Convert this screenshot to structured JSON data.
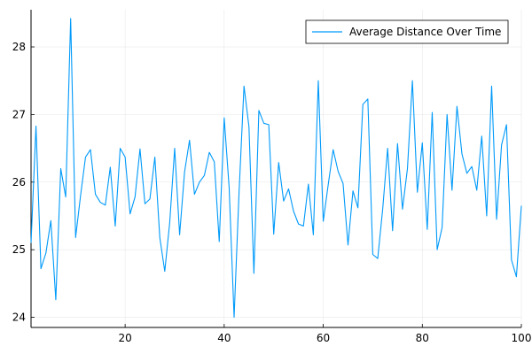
{
  "chart_data": {
    "type": "line",
    "title": "",
    "xlabel": "",
    "ylabel": "",
    "xlim": [
      1,
      100
    ],
    "ylim": [
      23.85,
      28.55
    ],
    "xticks": [
      20,
      40,
      60,
      80,
      100
    ],
    "yticks": [
      24,
      25,
      26,
      27,
      28
    ],
    "grid": true,
    "legend_position": "top-right",
    "line_color": "#009AFA",
    "series": [
      {
        "name": "Average Distance Over Time",
        "x": [
          1,
          2,
          3,
          4,
          5,
          6,
          7,
          8,
          9,
          10,
          11,
          12,
          13,
          14,
          15,
          16,
          17,
          18,
          19,
          20,
          21,
          22,
          23,
          24,
          25,
          26,
          27,
          28,
          29,
          30,
          31,
          32,
          33,
          34,
          35,
          36,
          37,
          38,
          39,
          40,
          41,
          42,
          43,
          44,
          45,
          46,
          47,
          48,
          49,
          50,
          51,
          52,
          53,
          54,
          55,
          56,
          57,
          58,
          59,
          60,
          61,
          62,
          63,
          64,
          65,
          66,
          67,
          68,
          69,
          70,
          71,
          72,
          73,
          74,
          75,
          76,
          77,
          78,
          79,
          80,
          81,
          82,
          83,
          84,
          85,
          86,
          87,
          88,
          89,
          90,
          91,
          92,
          93,
          94,
          95,
          96,
          97,
          98,
          99,
          100
        ],
        "y": [
          25.1,
          26.83,
          24.72,
          24.95,
          25.43,
          24.26,
          26.2,
          25.78,
          28.42,
          25.18,
          25.8,
          26.37,
          26.48,
          25.82,
          25.7,
          25.66,
          26.22,
          25.35,
          26.5,
          26.37,
          25.53,
          25.78,
          26.49,
          25.68,
          25.75,
          26.37,
          25.18,
          24.68,
          25.4,
          26.5,
          25.22,
          26.15,
          26.62,
          25.82,
          26.0,
          26.1,
          26.44,
          26.3,
          25.12,
          26.95,
          25.92,
          24.0,
          25.85,
          27.42,
          26.82,
          24.65,
          27.06,
          26.87,
          26.85,
          25.23,
          26.29,
          25.72,
          25.9,
          25.57,
          25.38,
          25.35,
          25.97,
          25.22,
          27.5,
          25.42,
          25.96,
          26.48,
          26.16,
          25.98,
          25.07,
          25.87,
          25.62,
          27.15,
          27.23,
          24.93,
          24.87,
          25.6,
          26.5,
          25.28,
          26.57,
          25.6,
          26.2,
          27.5,
          25.85,
          26.58,
          25.3,
          27.03,
          25.0,
          25.33,
          27.0,
          25.88,
          27.12,
          26.42,
          26.13,
          26.23,
          25.88,
          26.68,
          25.5,
          27.42,
          25.45,
          26.55,
          26.85,
          24.85,
          24.6,
          25.65
        ]
      }
    ]
  }
}
